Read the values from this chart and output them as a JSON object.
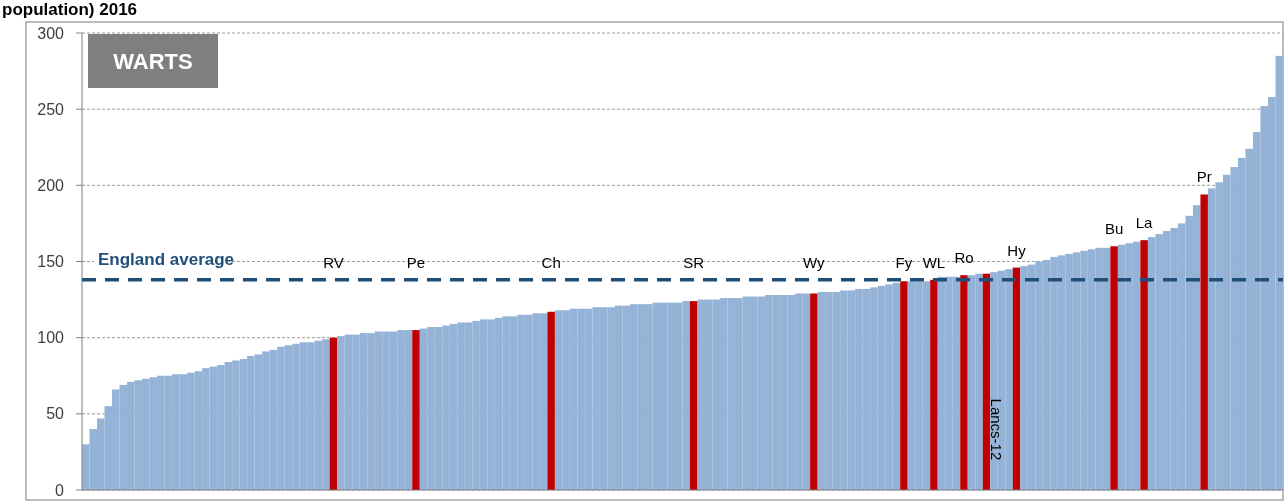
{
  "chart_data": {
    "type": "bar",
    "title": "WARTS",
    "subtitle": "population) 2016",
    "categories": [
      null,
      null,
      null,
      null,
      null,
      null,
      null,
      null,
      null,
      null,
      null,
      null,
      null,
      null,
      null,
      null,
      null,
      null,
      null,
      null,
      null,
      null,
      null,
      null,
      null,
      null,
      null,
      null,
      null,
      null,
      null,
      null,
      null,
      "RV",
      null,
      null,
      null,
      null,
      null,
      null,
      null,
      null,
      null,
      null,
      "Pe",
      null,
      null,
      null,
      null,
      null,
      null,
      null,
      null,
      null,
      null,
      null,
      null,
      null,
      null,
      null,
      null,
      null,
      "Ch",
      null,
      null,
      null,
      null,
      null,
      null,
      null,
      null,
      null,
      null,
      null,
      null,
      null,
      null,
      null,
      null,
      null,
      null,
      "SR",
      null,
      null,
      null,
      null,
      null,
      null,
      null,
      null,
      null,
      null,
      null,
      null,
      null,
      null,
      null,
      "Wy",
      null,
      null,
      null,
      null,
      null,
      null,
      null,
      null,
      null,
      null,
      null,
      "Fy",
      null,
      null,
      null,
      "WL",
      null,
      null,
      null,
      "Ro",
      null,
      null,
      null,
      null,
      null,
      null,
      "Hy",
      null,
      null,
      null,
      null,
      null,
      null,
      null,
      null,
      null,
      null,
      null,
      null,
      "Bu",
      null,
      null,
      null,
      "La",
      null,
      null,
      null,
      null,
      null,
      null,
      null,
      "Pr",
      null,
      null,
      null,
      null,
      null,
      null,
      null,
      null,
      null,
      null
    ],
    "values": [
      30,
      40,
      47,
      55,
      66,
      69,
      71,
      72,
      73,
      74,
      75,
      75,
      76,
      76,
      77,
      78,
      80,
      81,
      82,
      84,
      85,
      86,
      88,
      89,
      91,
      92,
      94,
      95,
      96,
      97,
      97,
      98,
      99,
      100,
      101,
      102,
      102,
      103,
      103,
      104,
      104,
      104,
      105,
      105,
      105,
      106,
      107,
      107,
      108,
      109,
      110,
      110,
      111,
      112,
      112,
      113,
      114,
      114,
      115,
      115,
      116,
      116,
      117,
      118,
      118,
      119,
      119,
      119,
      120,
      120,
      120,
      121,
      121,
      122,
      122,
      122,
      123,
      123,
      123,
      123,
      124,
      124,
      125,
      125,
      125,
      126,
      126,
      126,
      127,
      127,
      127,
      128,
      128,
      128,
      128,
      129,
      129,
      129,
      130,
      130,
      130,
      131,
      131,
      132,
      132,
      133,
      134,
      135,
      136,
      137,
      137,
      137,
      137,
      138,
      140,
      140,
      140,
      141,
      141,
      142,
      142,
      143,
      144,
      145,
      146,
      147,
      148,
      150,
      151,
      153,
      154,
      155,
      156,
      157,
      158,
      159,
      159,
      160,
      161,
      162,
      163,
      164,
      166,
      168,
      170,
      172,
      175,
      180,
      187,
      194,
      198,
      202,
      207,
      212,
      218,
      224,
      235,
      252,
      258,
      285
    ],
    "colors": [
      "#95b3d7",
      "#95b3d7",
      "#95b3d7",
      "#95b3d7",
      "#95b3d7",
      "#95b3d7",
      "#95b3d7",
      "#95b3d7",
      "#95b3d7",
      "#95b3d7",
      "#95b3d7",
      "#95b3d7",
      "#95b3d7",
      "#95b3d7",
      "#95b3d7",
      "#95b3d7",
      "#95b3d7",
      "#95b3d7",
      "#95b3d7",
      "#95b3d7",
      "#95b3d7",
      "#95b3d7",
      "#95b3d7",
      "#95b3d7",
      "#95b3d7",
      "#95b3d7",
      "#95b3d7",
      "#95b3d7",
      "#95b3d7",
      "#95b3d7",
      "#95b3d7",
      "#95b3d7",
      "#95b3d7",
      "#c00000",
      "#95b3d7",
      "#95b3d7",
      "#95b3d7",
      "#95b3d7",
      "#95b3d7",
      "#95b3d7",
      "#95b3d7",
      "#95b3d7",
      "#95b3d7",
      "#95b3d7",
      "#c00000",
      "#95b3d7",
      "#95b3d7",
      "#95b3d7",
      "#95b3d7",
      "#95b3d7",
      "#95b3d7",
      "#95b3d7",
      "#95b3d7",
      "#95b3d7",
      "#95b3d7",
      "#95b3d7",
      "#95b3d7",
      "#95b3d7",
      "#95b3d7",
      "#95b3d7",
      "#95b3d7",
      "#95b3d7",
      "#c00000",
      "#95b3d7",
      "#95b3d7",
      "#95b3d7",
      "#95b3d7",
      "#95b3d7",
      "#95b3d7",
      "#95b3d7",
      "#95b3d7",
      "#95b3d7",
      "#95b3d7",
      "#95b3d7",
      "#95b3d7",
      "#95b3d7",
      "#95b3d7",
      "#95b3d7",
      "#95b3d7",
      "#95b3d7",
      "#95b3d7",
      "#c00000",
      "#95b3d7",
      "#95b3d7",
      "#95b3d7",
      "#95b3d7",
      "#95b3d7",
      "#95b3d7",
      "#95b3d7",
      "#95b3d7",
      "#95b3d7",
      "#95b3d7",
      "#95b3d7",
      "#95b3d7",
      "#95b3d7",
      "#95b3d7",
      "#95b3d7",
      "#c00000",
      "#95b3d7",
      "#95b3d7",
      "#95b3d7",
      "#95b3d7",
      "#95b3d7",
      "#95b3d7",
      "#95b3d7",
      "#95b3d7",
      "#95b3d7",
      "#95b3d7",
      "#95b3d7",
      "#c00000",
      "#95b3d7",
      "#95b3d7",
      "#95b3d7",
      "#c00000",
      "#95b3d7",
      "#95b3d7",
      "#95b3d7",
      "#c00000",
      "#95b3d7",
      "#95b3d7",
      "#c00000",
      "#95b3d7",
      "#95b3d7",
      "#95b3d7",
      "#c00000",
      "#95b3d7",
      "#95b3d7",
      "#95b3d7",
      "#95b3d7",
      "#95b3d7",
      "#95b3d7",
      "#95b3d7",
      "#95b3d7",
      "#95b3d7",
      "#95b3d7",
      "#95b3d7",
      "#95b3d7",
      "#c00000",
      "#95b3d7",
      "#95b3d7",
      "#95b3d7",
      "#c00000",
      "#95b3d7",
      "#95b3d7",
      "#95b3d7",
      "#95b3d7",
      "#95b3d7",
      "#95b3d7",
      "#95b3d7",
      "#c00000",
      "#95b3d7",
      "#95b3d7",
      "#95b3d7",
      "#95b3d7",
      "#95b3d7",
      "#95b3d7",
      "#95b3d7",
      "#95b3d7",
      "#95b3d7",
      "#95b3d7"
    ],
    "ylim": [
      0,
      300
    ],
    "yticks": [
      0,
      50,
      100,
      150,
      200,
      250,
      300
    ],
    "grid": "y",
    "annotations": [
      "Lancs-12"
    ],
    "ref_lines": [
      {
        "axis": "y",
        "value": 138,
        "label": "England average",
        "color": "#1f4e79",
        "line_style": "dashed"
      }
    ]
  }
}
